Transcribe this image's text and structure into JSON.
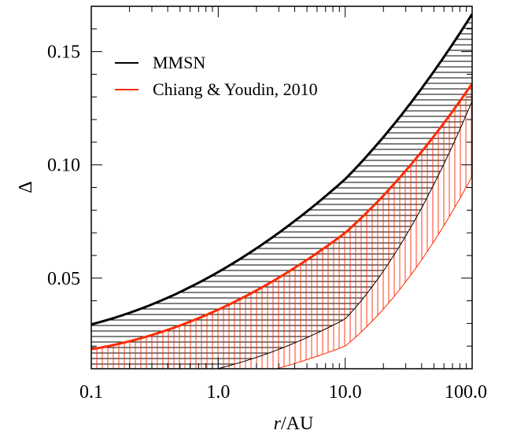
{
  "chart_data": {
    "type": "line",
    "xlabel": "r/AU",
    "xlabel_italic_part": "r",
    "xlabel_rest": "/AU",
    "ylabel": "Δ",
    "x_scale": "log",
    "xlim": [
      0.1,
      100.0
    ],
    "ylim": [
      0.01,
      0.17
    ],
    "x_ticks": [
      0.1,
      1.0,
      10.0,
      100.0
    ],
    "x_tick_labels": [
      "0.1",
      "1.0",
      "10.0",
      "100.0"
    ],
    "y_ticks": [
      0.05,
      0.1,
      0.15
    ],
    "y_tick_labels": [
      "0.05",
      "0.10",
      "0.15"
    ],
    "grid": false,
    "legend_position": "top-left",
    "colors": {
      "mmsn": "#000000",
      "cy2010": "#ff2a00"
    },
    "series": [
      {
        "name": "MMSN",
        "color": "#000000",
        "hatch": "horizontal",
        "upper": {
          "x": [
            0.1,
            1.0,
            10.0,
            100.0
          ],
          "y": [
            0.0296,
            0.0527,
            0.0937,
            0.1666
          ]
        },
        "lower": {
          "x": [
            0.1,
            1.0,
            10.0,
            100.0
          ],
          "y": [
            0.004,
            0.0101,
            0.032,
            0.1282
          ]
        }
      },
      {
        "name": "Chiang & Youdin, 2010",
        "color": "#ff2a00",
        "hatch": "vertical",
        "upper": {
          "x": [
            0.1,
            1.0,
            10.0,
            100.0
          ],
          "y": [
            0.0186,
            0.0361,
            0.07,
            0.1359
          ]
        },
        "lower": {
          "x": [
            0.1,
            1.0,
            10.0,
            100.0
          ],
          "y": [
            -0.001,
            0.004,
            0.02,
            0.095
          ]
        }
      }
    ]
  }
}
